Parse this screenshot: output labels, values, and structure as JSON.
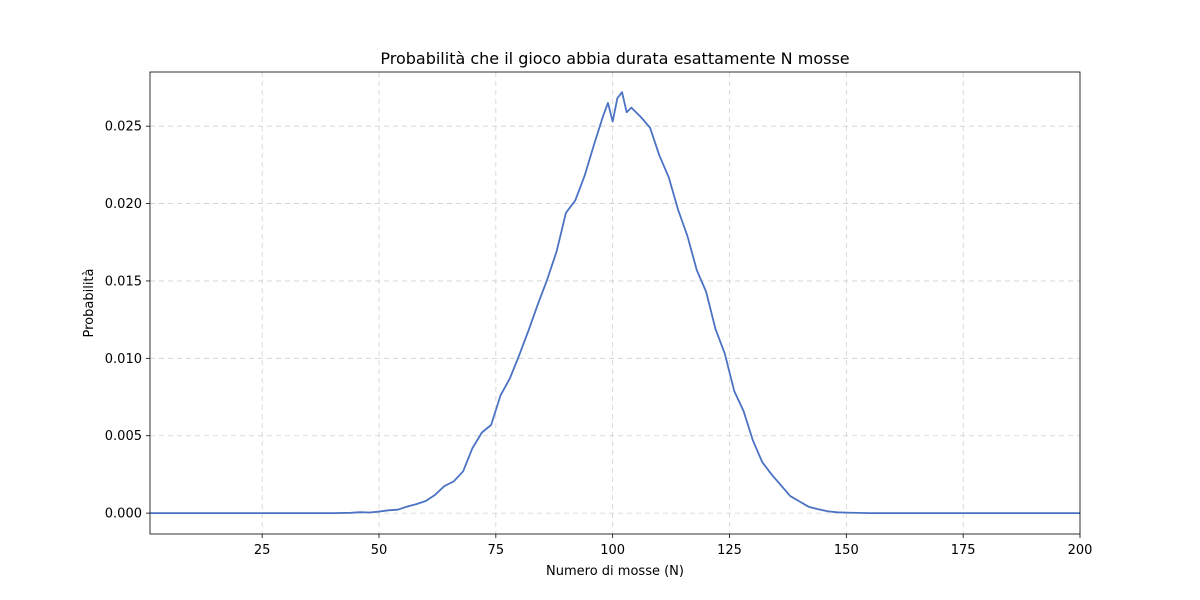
{
  "chart_data": {
    "type": "line",
    "title": "Probabilità che il gioco abbia durata esattamente N mosse",
    "xlabel": "Numero di mosse (N)",
    "ylabel": "Probabilità",
    "xlim": [
      1,
      200
    ],
    "ylim": [
      -0.00135,
      0.0285
    ],
    "x_ticks": [
      25,
      50,
      75,
      100,
      125,
      150,
      175,
      200
    ],
    "y_ticks": [
      0.0,
      0.005,
      0.01,
      0.015,
      0.02,
      0.025
    ],
    "x_tick_labels": [
      "25",
      "50",
      "75",
      "100",
      "125",
      "150",
      "175",
      "200"
    ],
    "y_tick_labels": [
      "0.000",
      "0.005",
      "0.010",
      "0.015",
      "0.020",
      "0.025"
    ],
    "grid": true,
    "line_color": "#4c72c4",
    "series": [
      {
        "x": [
          1,
          40,
          44,
          46,
          48,
          50,
          52,
          54,
          56,
          58,
          60,
          62,
          64,
          66,
          68,
          70,
          72,
          74,
          76,
          78,
          80,
          82,
          84,
          86,
          88,
          90,
          92,
          94,
          96,
          98,
          99,
          100,
          101,
          102,
          103,
          104,
          106,
          108,
          110,
          112,
          114,
          116,
          118,
          120,
          122,
          124,
          126,
          128,
          130,
          132,
          134,
          136,
          138,
          140,
          142,
          144,
          146,
          148,
          150,
          155,
          160,
          200
        ],
        "y": [
          0.0,
          0.0,
          2e-05,
          6e-05,
          4e-05,
          0.0001,
          0.00018,
          0.00022,
          0.00042,
          0.00058,
          0.00078,
          0.00118,
          0.00175,
          0.00205,
          0.0027,
          0.0042,
          0.0052,
          0.0057,
          0.0076,
          0.0087,
          0.0102,
          0.0118,
          0.0135,
          0.0151,
          0.0169,
          0.0194,
          0.0202,
          0.0218,
          0.0238,
          0.0257,
          0.0265,
          0.0253,
          0.0268,
          0.0272,
          0.0259,
          0.0262,
          0.0256,
          0.0249,
          0.0231,
          0.0217,
          0.0196,
          0.0179,
          0.0157,
          0.0143,
          0.0119,
          0.0103,
          0.0079,
          0.0066,
          0.0047,
          0.0033,
          0.0025,
          0.0018,
          0.0011,
          0.00075,
          0.0004,
          0.00025,
          0.00012,
          5e-05,
          3e-05,
          0.0,
          0.0,
          0.0
        ]
      }
    ]
  }
}
